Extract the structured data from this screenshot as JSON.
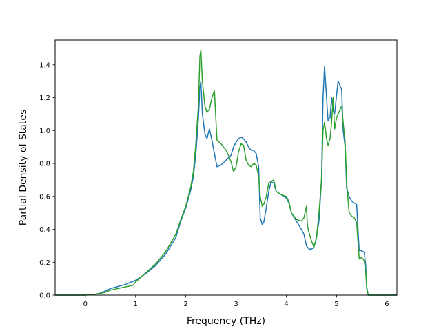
{
  "chart_data": {
    "type": "line",
    "xlabel": "Frequency (THz)",
    "ylabel": "Partial Density of States",
    "xlim": [
      -0.6,
      6.2
    ],
    "ylim": [
      0,
      1.55
    ],
    "xticks": [
      "0",
      "1",
      "2",
      "3",
      "4",
      "5",
      "6"
    ],
    "yticks": [
      "0.0",
      "0.2",
      "0.4",
      "0.6",
      "0.8",
      "1.0",
      "1.2",
      "1.4"
    ],
    "grid": false,
    "legend": "none",
    "series": [
      {
        "color": "#1f77b4",
        "points": [
          [
            -0.6,
            0
          ],
          [
            0,
            0
          ],
          [
            0.2,
            0.005
          ],
          [
            0.3,
            0.012
          ],
          [
            0.4,
            0.025
          ],
          [
            0.5,
            0.04
          ],
          [
            0.6,
            0.048
          ],
          [
            0.8,
            0.065
          ],
          [
            1.0,
            0.09
          ],
          [
            1.2,
            0.13
          ],
          [
            1.4,
            0.18
          ],
          [
            1.6,
            0.25
          ],
          [
            1.8,
            0.35
          ],
          [
            1.9,
            0.45
          ],
          [
            2.0,
            0.53
          ],
          [
            2.1,
            0.64
          ],
          [
            2.15,
            0.72
          ],
          [
            2.2,
            0.86
          ],
          [
            2.25,
            1.07
          ],
          [
            2.28,
            1.26
          ],
          [
            2.3,
            1.3
          ],
          [
            2.33,
            1.1
          ],
          [
            2.38,
            0.98
          ],
          [
            2.42,
            0.95
          ],
          [
            2.47,
            1.01
          ],
          [
            2.52,
            0.94
          ],
          [
            2.57,
            0.86
          ],
          [
            2.62,
            0.78
          ],
          [
            2.7,
            0.79
          ],
          [
            2.8,
            0.82
          ],
          [
            2.9,
            0.85
          ],
          [
            2.95,
            0.9
          ],
          [
            3.0,
            0.93
          ],
          [
            3.05,
            0.95
          ],
          [
            3.1,
            0.96
          ],
          [
            3.15,
            0.95
          ],
          [
            3.2,
            0.93
          ],
          [
            3.25,
            0.9
          ],
          [
            3.3,
            0.88
          ],
          [
            3.35,
            0.88
          ],
          [
            3.4,
            0.86
          ],
          [
            3.45,
            0.78
          ],
          [
            3.48,
            0.47
          ],
          [
            3.52,
            0.43
          ],
          [
            3.55,
            0.44
          ],
          [
            3.6,
            0.53
          ],
          [
            3.65,
            0.63
          ],
          [
            3.7,
            0.69
          ],
          [
            3.75,
            0.68
          ],
          [
            3.8,
            0.63
          ],
          [
            3.9,
            0.61
          ],
          [
            4.0,
            0.59
          ],
          [
            4.05,
            0.56
          ],
          [
            4.1,
            0.5
          ],
          [
            4.2,
            0.45
          ],
          [
            4.3,
            0.4
          ],
          [
            4.35,
            0.37
          ],
          [
            4.4,
            0.3
          ],
          [
            4.45,
            0.28
          ],
          [
            4.5,
            0.28
          ],
          [
            4.55,
            0.29
          ],
          [
            4.6,
            0.35
          ],
          [
            4.65,
            0.45
          ],
          [
            4.7,
            0.7
          ],
          [
            4.73,
            1.2
          ],
          [
            4.76,
            1.39
          ],
          [
            4.8,
            1.2
          ],
          [
            4.83,
            1.06
          ],
          [
            4.87,
            1.08
          ],
          [
            4.9,
            1.2
          ],
          [
            4.93,
            1.12
          ],
          [
            4.96,
            1.1
          ],
          [
            5.0,
            1.22
          ],
          [
            5.03,
            1.3
          ],
          [
            5.06,
            1.28
          ],
          [
            5.1,
            1.25
          ],
          [
            5.13,
            1.0
          ],
          [
            5.17,
            0.9
          ],
          [
            5.2,
            0.65
          ],
          [
            5.25,
            0.6
          ],
          [
            5.3,
            0.57
          ],
          [
            5.35,
            0.56
          ],
          [
            5.4,
            0.55
          ],
          [
            5.45,
            0.27
          ],
          [
            5.5,
            0.27
          ],
          [
            5.55,
            0.26
          ],
          [
            5.58,
            0.18
          ],
          [
            5.6,
            0.05
          ],
          [
            5.63,
            0
          ],
          [
            6.2,
            0
          ]
        ]
      },
      {
        "color": "#2ca02c",
        "points": [
          [
            -0.6,
            0
          ],
          [
            0,
            0
          ],
          [
            0.2,
            0.005
          ],
          [
            0.3,
            0.01
          ],
          [
            0.4,
            0.018
          ],
          [
            0.5,
            0.03
          ],
          [
            0.6,
            0.037
          ],
          [
            0.8,
            0.05
          ],
          [
            0.95,
            0.06
          ],
          [
            1.0,
            0.08
          ],
          [
            1.2,
            0.135
          ],
          [
            1.4,
            0.19
          ],
          [
            1.6,
            0.265
          ],
          [
            1.8,
            0.37
          ],
          [
            1.9,
            0.46
          ],
          [
            2.0,
            0.54
          ],
          [
            2.1,
            0.66
          ],
          [
            2.15,
            0.75
          ],
          [
            2.2,
            0.92
          ],
          [
            2.25,
            1.15
          ],
          [
            2.28,
            1.45
          ],
          [
            2.3,
            1.49
          ],
          [
            2.33,
            1.3
          ],
          [
            2.38,
            1.15
          ],
          [
            2.42,
            1.11
          ],
          [
            2.47,
            1.13
          ],
          [
            2.52,
            1.2
          ],
          [
            2.57,
            1.24
          ],
          [
            2.62,
            0.94
          ],
          [
            2.7,
            0.92
          ],
          [
            2.8,
            0.88
          ],
          [
            2.85,
            0.85
          ],
          [
            2.9,
            0.81
          ],
          [
            2.95,
            0.75
          ],
          [
            3.0,
            0.78
          ],
          [
            3.05,
            0.87
          ],
          [
            3.1,
            0.92
          ],
          [
            3.15,
            0.91
          ],
          [
            3.2,
            0.82
          ],
          [
            3.25,
            0.79
          ],
          [
            3.3,
            0.78
          ],
          [
            3.35,
            0.8
          ],
          [
            3.4,
            0.79
          ],
          [
            3.45,
            0.72
          ],
          [
            3.48,
            0.6
          ],
          [
            3.52,
            0.54
          ],
          [
            3.55,
            0.55
          ],
          [
            3.6,
            0.6
          ],
          [
            3.65,
            0.68
          ],
          [
            3.7,
            0.69
          ],
          [
            3.75,
            0.7
          ],
          [
            3.8,
            0.63
          ],
          [
            3.9,
            0.61
          ],
          [
            4.0,
            0.6
          ],
          [
            4.05,
            0.57
          ],
          [
            4.1,
            0.5
          ],
          [
            4.2,
            0.46
          ],
          [
            4.3,
            0.45
          ],
          [
            4.35,
            0.47
          ],
          [
            4.4,
            0.54
          ],
          [
            4.42,
            0.42
          ],
          [
            4.45,
            0.38
          ],
          [
            4.5,
            0.33
          ],
          [
            4.55,
            0.29
          ],
          [
            4.6,
            0.35
          ],
          [
            4.65,
            0.5
          ],
          [
            4.7,
            0.7
          ],
          [
            4.73,
            1.0
          ],
          [
            4.76,
            1.05
          ],
          [
            4.8,
            0.95
          ],
          [
            4.83,
            0.91
          ],
          [
            4.87,
            0.95
          ],
          [
            4.9,
            1.05
          ],
          [
            4.93,
            1.2
          ],
          [
            4.96,
            1.01
          ],
          [
            5.0,
            1.08
          ],
          [
            5.03,
            1.1
          ],
          [
            5.06,
            1.12
          ],
          [
            5.1,
            1.15
          ],
          [
            5.13,
            1.05
          ],
          [
            5.17,
            0.93
          ],
          [
            5.2,
            0.68
          ],
          [
            5.25,
            0.5
          ],
          [
            5.3,
            0.48
          ],
          [
            5.35,
            0.47
          ],
          [
            5.4,
            0.44
          ],
          [
            5.45,
            0.22
          ],
          [
            5.5,
            0.23
          ],
          [
            5.55,
            0.21
          ],
          [
            5.58,
            0.14
          ],
          [
            5.6,
            0.04
          ],
          [
            5.63,
            0
          ],
          [
            6.2,
            0
          ]
        ]
      }
    ]
  }
}
